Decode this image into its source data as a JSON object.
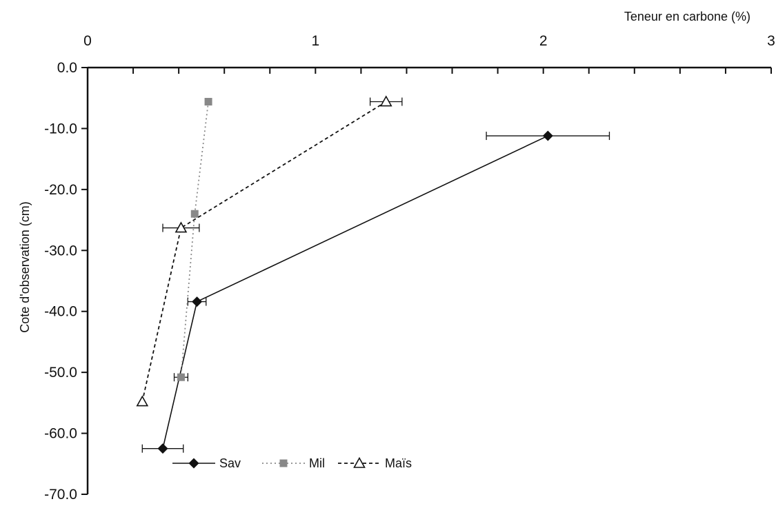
{
  "chart_data": {
    "type": "line",
    "title": "",
    "xlabel": "Teneur en carbone (%)",
    "ylabel": "Cote d'observation (cm)",
    "x_axis_position": "top",
    "xlim": [
      0,
      3
    ],
    "ylim": [
      -70,
      0
    ],
    "x_ticks": [
      0,
      1,
      2,
      3
    ],
    "x_tick_labels": [
      "0",
      "1",
      "2",
      "3"
    ],
    "x_minor_step": 0.2,
    "y_ticks": [
      0,
      -10,
      -20,
      -30,
      -40,
      -50,
      -60,
      -70
    ],
    "y_tick_labels": [
      "0.0",
      "-10.0",
      "-20.0",
      "-30.0",
      "-40.0",
      "-50.0",
      "-60.0",
      "-70.0"
    ],
    "grid": false,
    "legend_position": "bottom-left inside",
    "series": [
      {
        "name": "Sav",
        "marker": "diamond",
        "line_style": "solid",
        "color": "#111111",
        "points": [
          {
            "x": 2.02,
            "y": -11.2,
            "x_err": 0.27
          },
          {
            "x": 0.48,
            "y": -38.4,
            "x_err": 0.04
          },
          {
            "x": 0.33,
            "y": -62.5,
            "x_err": 0.09
          }
        ]
      },
      {
        "name": "Mil",
        "marker": "square",
        "line_style": "dotted",
        "color": "#888888",
        "points": [
          {
            "x": 0.53,
            "y": -5.6,
            "x_err": 0
          },
          {
            "x": 0.47,
            "y": -24.0,
            "x_err": 0
          },
          {
            "x": 0.41,
            "y": -50.8,
            "x_err": 0.03
          }
        ]
      },
      {
        "name": "Maïs",
        "marker": "triangle-open",
        "line_style": "dashed",
        "color": "#111111",
        "points": [
          {
            "x": 1.31,
            "y": -5.6,
            "x_err": 0.07
          },
          {
            "x": 0.41,
            "y": -26.3,
            "x_err": 0.08
          },
          {
            "x": 0.24,
            "y": -54.8,
            "x_err": 0
          }
        ]
      }
    ]
  }
}
